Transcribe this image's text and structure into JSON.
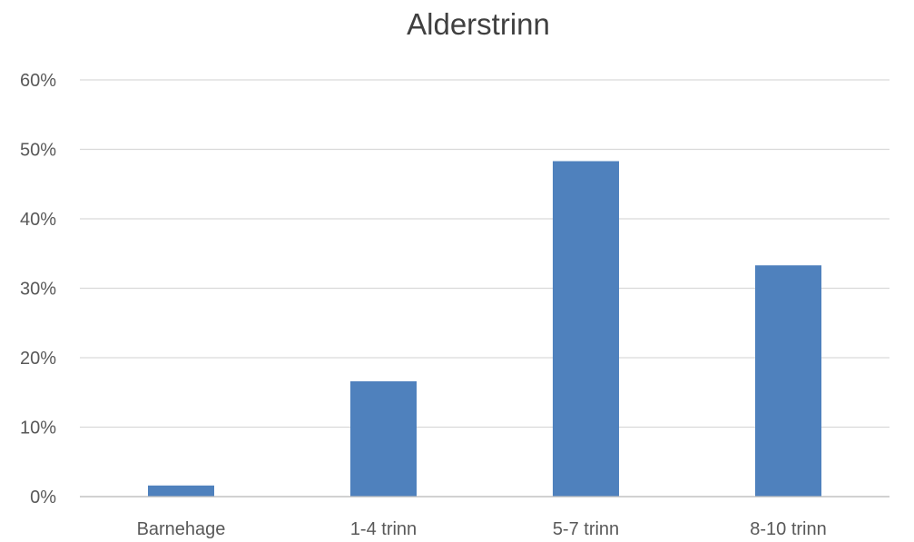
{
  "chart_data": {
    "type": "bar",
    "title": "Alderstrinn",
    "categories": [
      "Barnehage",
      "1-4 trinn",
      "5-7 trinn",
      "8-10 trinn"
    ],
    "values": [
      1.6,
      16.6,
      48.3,
      33.3
    ],
    "value_unit": "%",
    "ylim": [
      0,
      60
    ],
    "y_ticks": [
      0,
      10,
      20,
      30,
      40,
      50,
      60
    ],
    "y_tick_labels": [
      "0%",
      "10%",
      "20%",
      "30%",
      "40%",
      "50%",
      "60%"
    ],
    "grid": true,
    "legend": "none",
    "bar_color": "#4F81BD",
    "grid_color": "#D9D9D9",
    "axis_color": "#BFBFBF"
  }
}
